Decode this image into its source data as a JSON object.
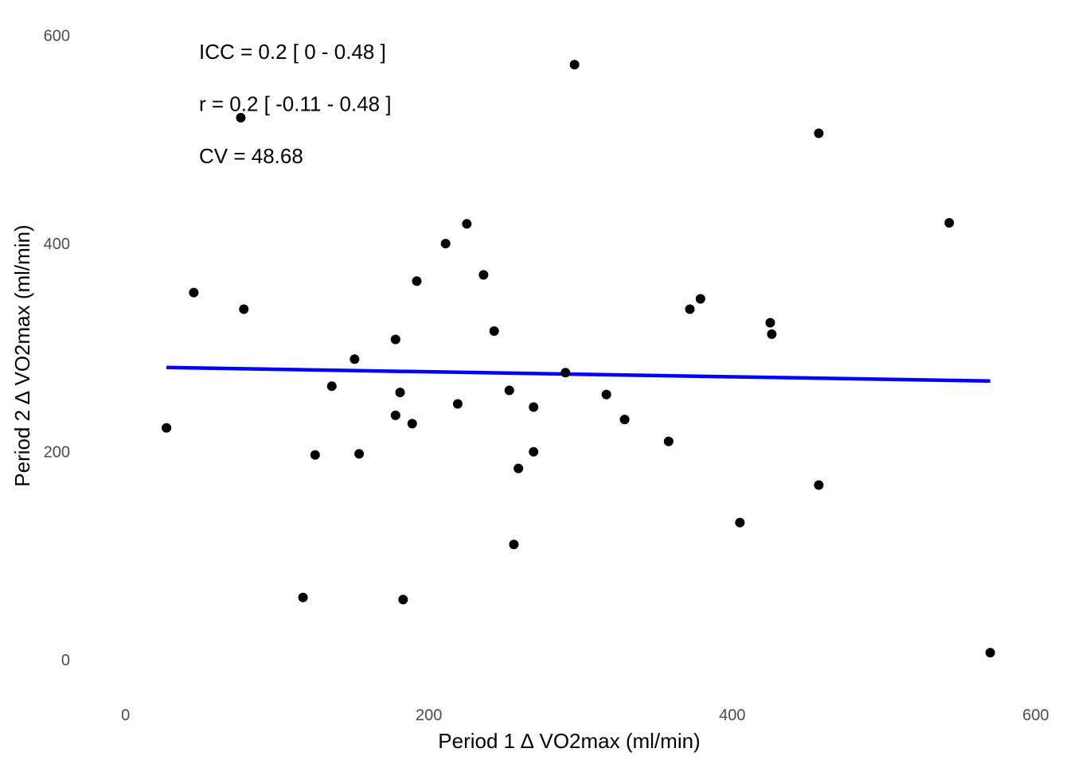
{
  "chart_data": {
    "type": "scatter",
    "xlabel": "Period 1 ∆ VO2max (ml/min)",
    "ylabel": "Period 2 ∆ VO2max (ml/min)",
    "xlim": [
      -25,
      610
    ],
    "ylim": [
      -35,
      615
    ],
    "x_ticks": [
      0,
      200,
      400,
      600
    ],
    "y_ticks": [
      0,
      200,
      400,
      600
    ],
    "grid": false,
    "annotations": [
      "ICC = 0.2 [ 0 - 0.48 ]",
      "r = 0.2 [ -0.11 - 0.48 ]",
      "CV = 48.68"
    ],
    "points": [
      {
        "x": 27,
        "y": 223
      },
      {
        "x": 45,
        "y": 353
      },
      {
        "x": 76,
        "y": 521
      },
      {
        "x": 78,
        "y": 337
      },
      {
        "x": 117,
        "y": 60
      },
      {
        "x": 125,
        "y": 197
      },
      {
        "x": 136,
        "y": 263
      },
      {
        "x": 151,
        "y": 289
      },
      {
        "x": 154,
        "y": 198
      },
      {
        "x": 178,
        "y": 308
      },
      {
        "x": 178,
        "y": 235
      },
      {
        "x": 181,
        "y": 257
      },
      {
        "x": 183,
        "y": 58
      },
      {
        "x": 189,
        "y": 227
      },
      {
        "x": 192,
        "y": 364
      },
      {
        "x": 211,
        "y": 400
      },
      {
        "x": 219,
        "y": 246
      },
      {
        "x": 225,
        "y": 419
      },
      {
        "x": 236,
        "y": 370
      },
      {
        "x": 243,
        "y": 316
      },
      {
        "x": 253,
        "y": 259
      },
      {
        "x": 256,
        "y": 111
      },
      {
        "x": 259,
        "y": 184
      },
      {
        "x": 269,
        "y": 243
      },
      {
        "x": 269,
        "y": 200
      },
      {
        "x": 290,
        "y": 276
      },
      {
        "x": 296,
        "y": 572
      },
      {
        "x": 317,
        "y": 255
      },
      {
        "x": 329,
        "y": 231
      },
      {
        "x": 358,
        "y": 210
      },
      {
        "x": 372,
        "y": 337
      },
      {
        "x": 379,
        "y": 347
      },
      {
        "x": 405,
        "y": 132
      },
      {
        "x": 425,
        "y": 324
      },
      {
        "x": 426,
        "y": 313
      },
      {
        "x": 457,
        "y": 506
      },
      {
        "x": 457,
        "y": 168
      },
      {
        "x": 543,
        "y": 420
      },
      {
        "x": 570,
        "y": 7
      }
    ],
    "fit_line": {
      "x": [
        27,
        570
      ],
      "y": [
        281,
        268
      ]
    },
    "point_color": "#000000",
    "line_color": "#0000ff"
  }
}
